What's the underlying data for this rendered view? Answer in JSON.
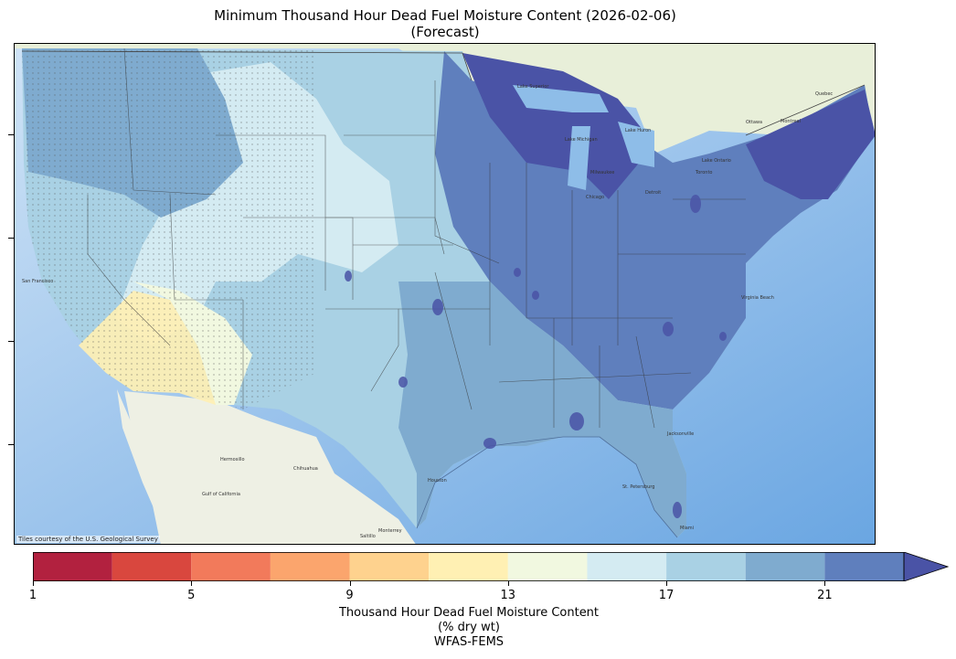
{
  "title": {
    "line1": "Minimum Thousand Hour Dead Fuel Moisture Content (2026-02-06)",
    "line2": "(Forecast)"
  },
  "map": {
    "attribution": "Tiles courtesy of the U.S. Geological Survey",
    "labels": [
      "San Francisco",
      "Lake Superior",
      "Lake Michigan",
      "Lake Huron",
      "Lake Ontario",
      "Ottawa",
      "Montreal",
      "Quebec",
      "Milwaukee",
      "Chicago",
      "Toronto",
      "Detroit",
      "Virginia Beach",
      "Hermosillo",
      "Chihuahua",
      "Monterrey",
      "Saltillo",
      "Jacksonville",
      "St. Petersburg",
      "Miami",
      "Gulf of California",
      "Houston"
    ]
  },
  "colorbar": {
    "bins": [
      {
        "from": 1,
        "to": 3,
        "color": "#b2213f"
      },
      {
        "from": 3,
        "to": 5,
        "color": "#d9473e"
      },
      {
        "from": 5,
        "to": 7,
        "color": "#f27a5b"
      },
      {
        "from": 7,
        "to": 9,
        "color": "#fba56d"
      },
      {
        "from": 9,
        "to": 11,
        "color": "#fed28e"
      },
      {
        "from": 11,
        "to": 13,
        "color": "#fff0b3"
      },
      {
        "from": 13,
        "to": 15,
        "color": "#f1f8e0"
      },
      {
        "from": 15,
        "to": 17,
        "color": "#d4ebf2"
      },
      {
        "from": 17,
        "to": 19,
        "color": "#a9d1e4"
      },
      {
        "from": 19,
        "to": 21,
        "color": "#7fabcf"
      },
      {
        "from": 21,
        "to": 23,
        "color": "#5f7fbd"
      }
    ],
    "extend_color": "#4a53a6",
    "ticks": [
      "1",
      "5",
      "9",
      "13",
      "17",
      "21"
    ],
    "label_line1": "Thousand Hour Dead Fuel Moisture Content",
    "label_line2": "(% dry wt)",
    "label_line3": "WFAS-FEMS"
  }
}
